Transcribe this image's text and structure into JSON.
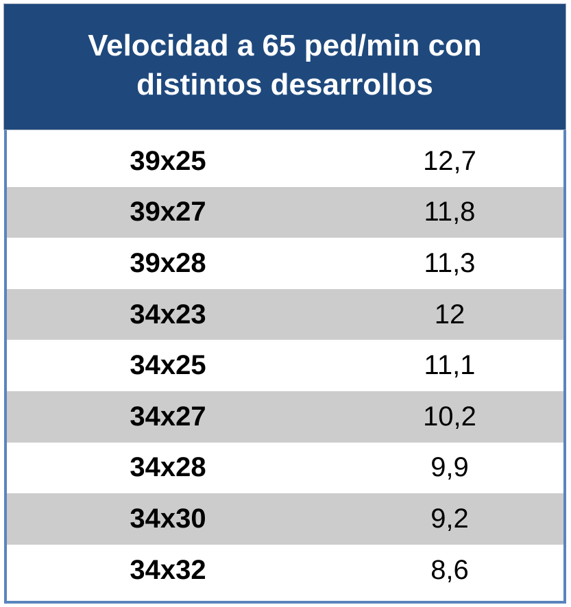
{
  "table": {
    "title": "Velocidad a 65 ped/min con distintos desarrollos",
    "rows": [
      [
        "39x25",
        "12,7"
      ],
      [
        "39x27",
        "11,8"
      ],
      [
        "39x28",
        "11,3"
      ],
      [
        "34x23",
        "12"
      ],
      [
        "34x25",
        "11,1"
      ],
      [
        "34x27",
        "10,2"
      ],
      [
        "34x28",
        "9,9"
      ],
      [
        "34x30",
        "9,2"
      ],
      [
        "34x32",
        "8,6"
      ]
    ]
  }
}
